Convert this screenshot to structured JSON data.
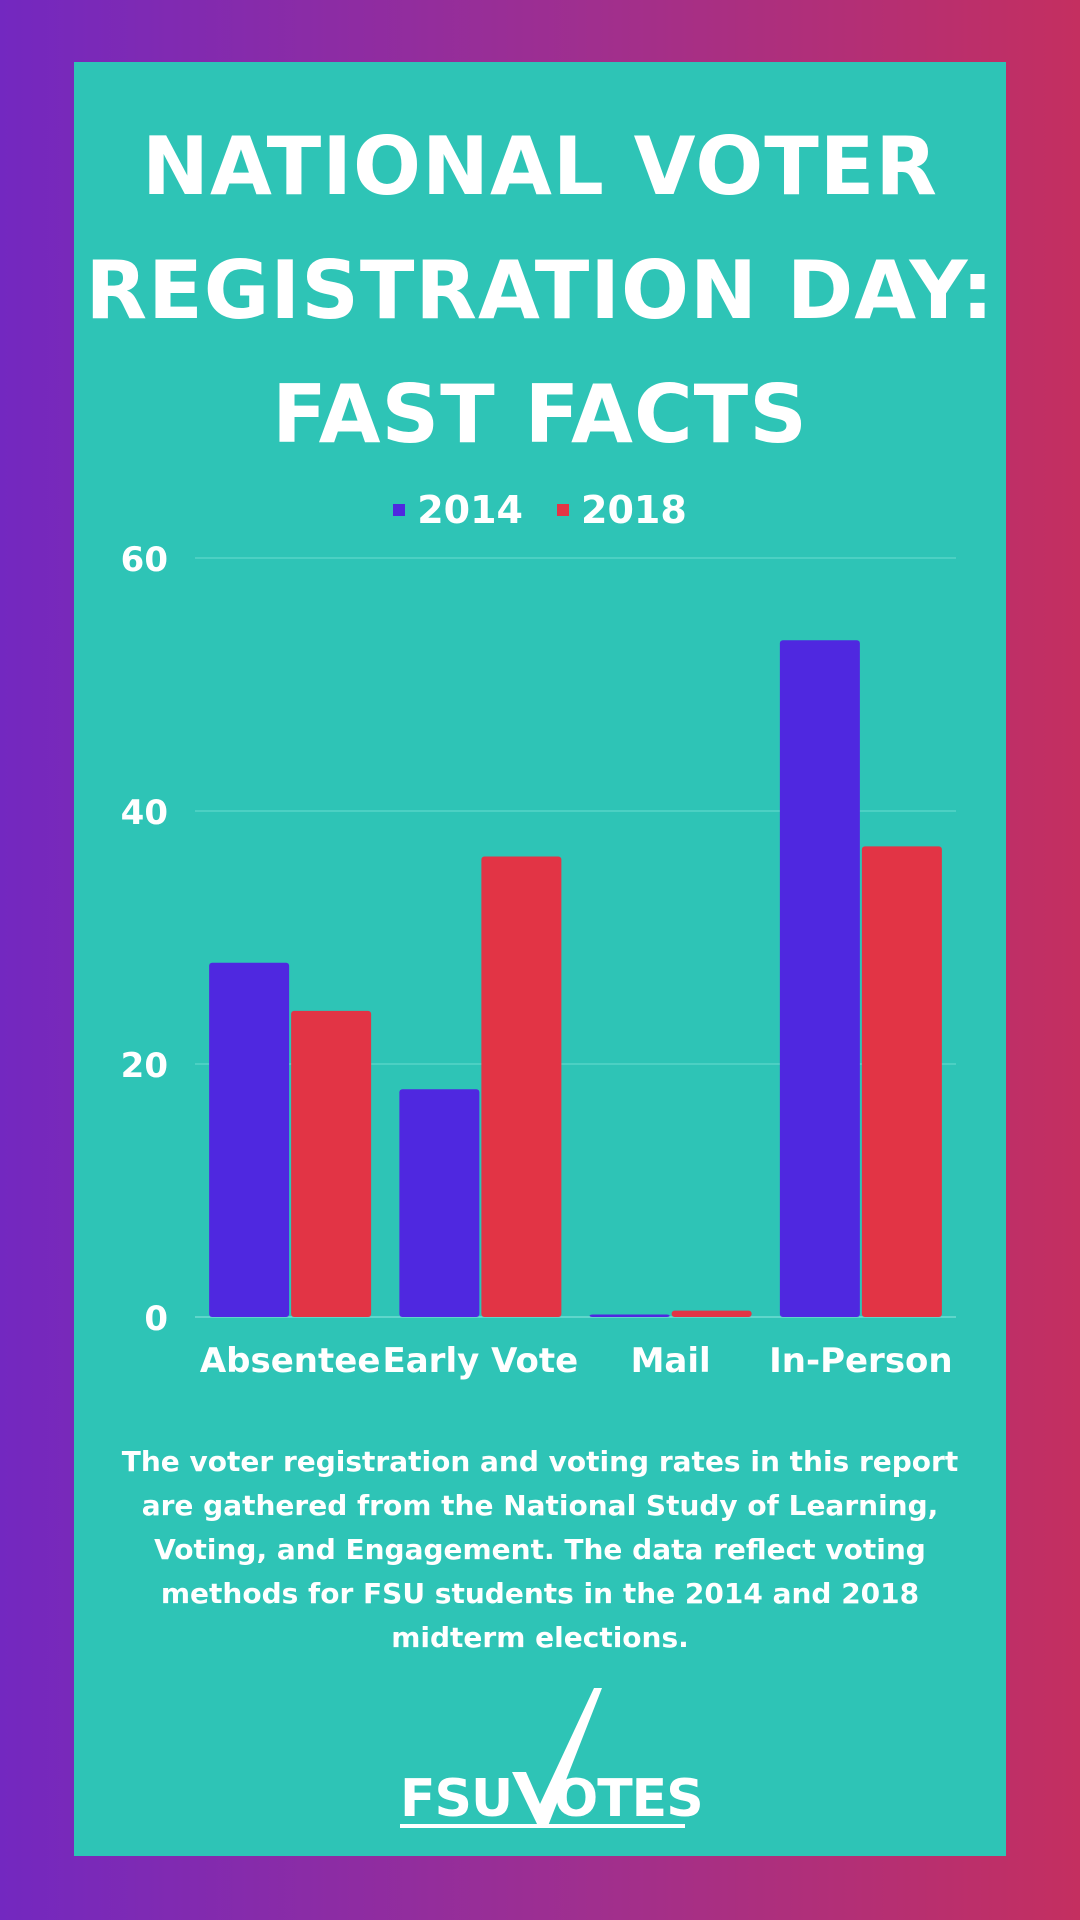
{
  "colors": {
    "background_panel": "#2ec4b6",
    "series_2014": "#4f28e0",
    "series_2018": "#e23445",
    "text": "#ffffff",
    "gridline": "#5fd6cb"
  },
  "header": {
    "title_lines": [
      "National Voter",
      "Registration Day:",
      "Fast Facts"
    ]
  },
  "chart_data": {
    "type": "bar",
    "categories": [
      "Absentee",
      "Early Vote",
      "Mail",
      "In-Person"
    ],
    "series": [
      {
        "name": "2014",
        "values": [
          28,
          18,
          0.2,
          53.5
        ]
      },
      {
        "name": "2018",
        "values": [
          24.2,
          36.4,
          0.5,
          37.2
        ]
      }
    ],
    "yticks": [
      "0",
      "20",
      "40",
      "60"
    ],
    "ylim": [
      0,
      60
    ],
    "grid": true,
    "legend_position": "top-center"
  },
  "footnote": "The voter registration and voting rates in this report are gathered from the National Study of Learning, Voting, and Engagement. The data reflect voting methods for FSU students in the 2014 and 2018 midterm elections.",
  "logo": {
    "text": "FSUVOTES"
  }
}
